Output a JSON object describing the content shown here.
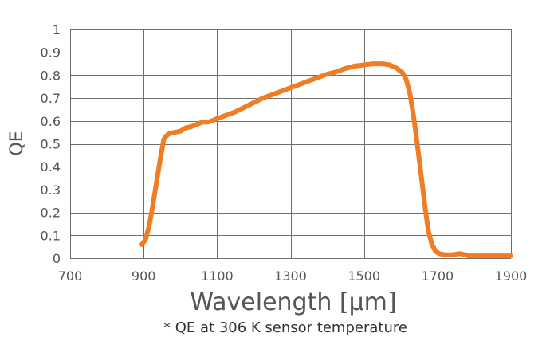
{
  "chart_data": {
    "type": "line",
    "xlabel": "Wavelength [µm]",
    "ylabel": "QE",
    "footnote": "* QE at 306 K sensor temperature",
    "xlim": [
      700,
      1900
    ],
    "ylim": [
      0,
      1
    ],
    "x_ticks": [
      700,
      900,
      1100,
      1300,
      1500,
      1700,
      1900
    ],
    "y_ticks": [
      0,
      0.1,
      0.2,
      0.3,
      0.4,
      0.5,
      0.6,
      0.7,
      0.8,
      0.9,
      1
    ],
    "y_tick_labels": [
      "0",
      "0.1",
      "0.2",
      "0.3",
      "0.4",
      "0.5",
      "0.6",
      "0.7",
      "0.8",
      "0.9",
      "1"
    ],
    "grid": true,
    "line_color": "#f07d24",
    "series": [
      {
        "x": [
          895,
          905,
          915,
          925,
          935,
          945,
          955,
          962,
          970,
          985,
          1000,
          1015,
          1030,
          1045,
          1060,
          1075,
          1085,
          1100,
          1125,
          1150,
          1175,
          1200,
          1225,
          1250,
          1275,
          1300,
          1325,
          1350,
          1375,
          1400,
          1425,
          1450,
          1475,
          1500,
          1525,
          1550,
          1570,
          1590,
          1605,
          1615,
          1625,
          1635,
          1645,
          1655,
          1665,
          1675,
          1685,
          1695,
          1705,
          1720,
          1740,
          1760,
          1775,
          1785,
          1800,
          1850,
          1900
        ],
        "y": [
          0.06,
          0.08,
          0.14,
          0.23,
          0.33,
          0.43,
          0.52,
          0.535,
          0.545,
          0.55,
          0.555,
          0.57,
          0.575,
          0.585,
          0.595,
          0.595,
          0.6,
          0.61,
          0.625,
          0.64,
          0.66,
          0.68,
          0.7,
          0.715,
          0.73,
          0.745,
          0.76,
          0.775,
          0.79,
          0.805,
          0.815,
          0.83,
          0.84,
          0.845,
          0.85,
          0.85,
          0.845,
          0.83,
          0.81,
          0.78,
          0.72,
          0.62,
          0.5,
          0.37,
          0.24,
          0.12,
          0.06,
          0.03,
          0.02,
          0.015,
          0.015,
          0.02,
          0.015,
          0.01,
          0.01,
          0.01,
          0.01
        ]
      }
    ]
  }
}
